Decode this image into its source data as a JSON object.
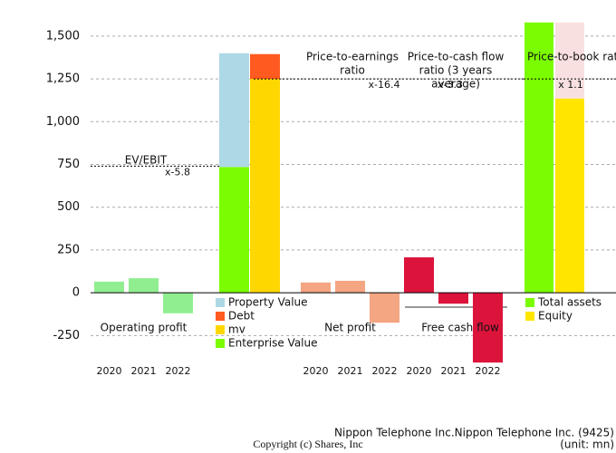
{
  "chart_data": {
    "type": "bar",
    "ylim": [
      -460,
      1690
    ],
    "yticks": [
      -250,
      0,
      250,
      500,
      750,
      {
        "value": 1000,
        "label": "1,000"
      },
      {
        "value": 1250,
        "label": "1,250"
      },
      {
        "value": 1500,
        "label": "1,500"
      }
    ],
    "grid": true,
    "groups": [
      {
        "name": "Operating profit",
        "categories": [
          "2020",
          "2021",
          "2022"
        ],
        "values": [
          65,
          85,
          -120
        ],
        "color": "#90ee90"
      },
      {
        "name": "Net profit",
        "categories": [
          "2020",
          "2021",
          "2022"
        ],
        "values": [
          60,
          70,
          -175
        ],
        "color": "#f4a582"
      },
      {
        "name": "Free cash flow",
        "categories": [
          "2020",
          "2021",
          "2022"
        ],
        "values": [
          207,
          -64,
          -408
        ],
        "color": "#dc143c"
      }
    ],
    "ev_stack": [
      {
        "name": "Enterprise Value",
        "color": "#7cfc00",
        "value": 735
      },
      {
        "name": "Property Value",
        "color": "#add8e6",
        "value": 665
      }
    ],
    "mv_stack": [
      {
        "name": "mv",
        "color": "#ffd700",
        "value": 1250
      },
      {
        "name": "Debt",
        "color": "#ff5a1f",
        "value": 145
      }
    ],
    "book": [
      {
        "name": "Total assets",
        "color": "#7cfc00",
        "value": 1580
      },
      {
        "name": "Equity",
        "color": "#ffe600",
        "value": 1135
      }
    ],
    "ratios": [
      {
        "name": [
          "EV/EBIT"
        ],
        "level": 740,
        "label": "x-5.8"
      },
      {
        "name": [
          "Price-to-earnings",
          "ratio"
        ],
        "level": 1250,
        "label": "x-16.4"
      },
      {
        "name": [
          "Price-to-cash flow",
          "ratio (3 years",
          "average)"
        ],
        "level": 1250,
        "label": "x-3.3"
      },
      {
        "name": [
          "Price-to-book ratio"
        ],
        "level": 1250,
        "label": "x 1.1"
      }
    ],
    "company": "Nippon Telephone Inc.Nippon Telephone Inc. (9425)",
    "unit": "(unit: mn)",
    "copyright": "Copyright (c) Shares, Inc"
  }
}
